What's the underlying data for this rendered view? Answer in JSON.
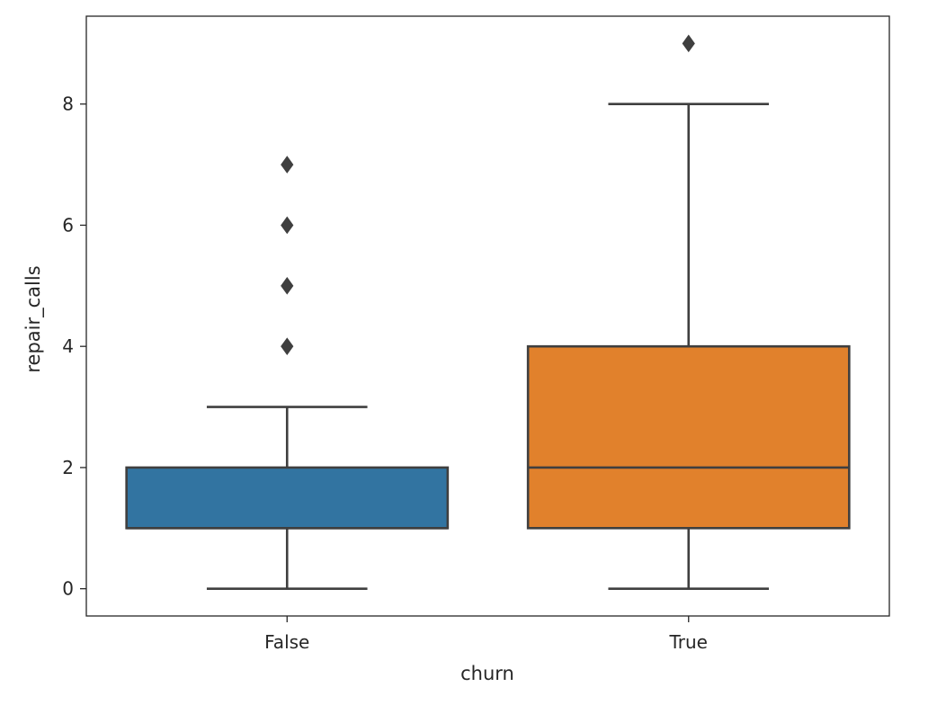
{
  "chart_data": {
    "type": "box",
    "xlabel": "churn",
    "ylabel": "repair_calls",
    "categories": [
      "False",
      "True"
    ],
    "ylim": [
      -0.45,
      9.45
    ],
    "yticks": [
      0,
      2,
      4,
      6,
      8
    ],
    "grid": false,
    "boxes": [
      {
        "category": "False",
        "whisker_low": 0,
        "q1": 1,
        "median": 1,
        "q3": 2,
        "whisker_high": 3,
        "outliers": [
          4,
          5,
          6,
          7
        ],
        "color": "#3274a1"
      },
      {
        "category": "True",
        "whisker_low": 0,
        "q1": 1,
        "median": 2,
        "q3": 4,
        "whisker_high": 8,
        "outliers": [
          9
        ],
        "color": "#e1812c"
      }
    ],
    "line_color": "#3f3f3f"
  }
}
